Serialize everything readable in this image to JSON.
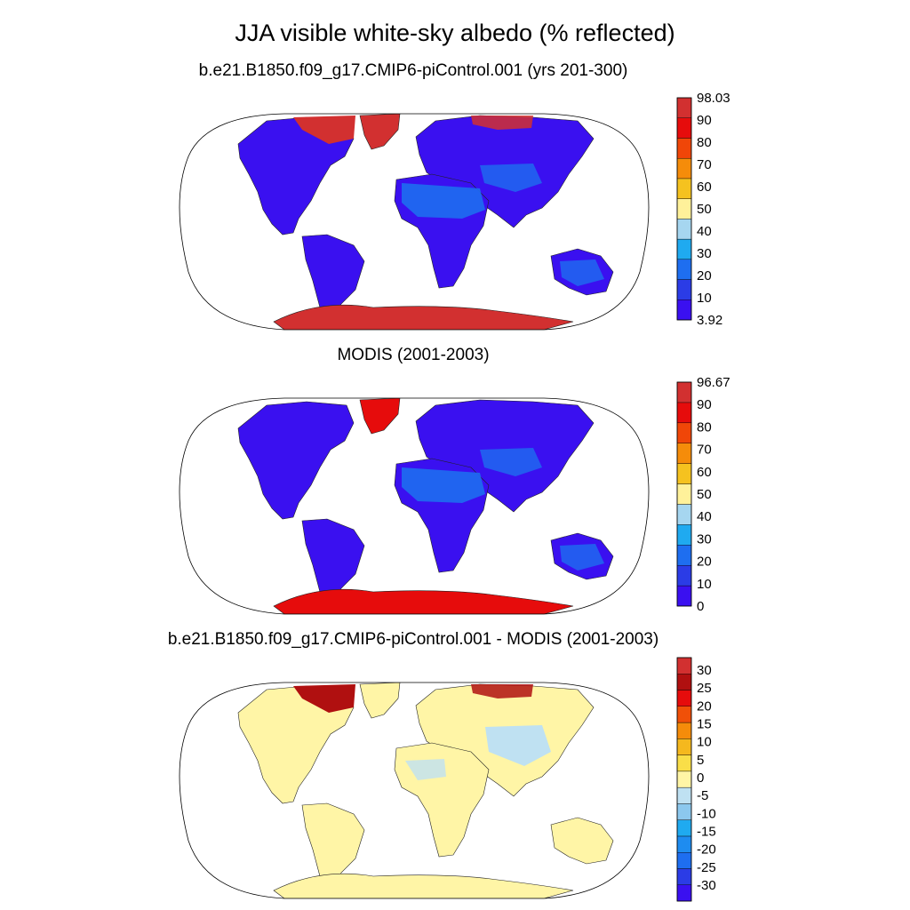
{
  "title": "JJA visible white-sky albedo (% reflected)",
  "colors": {
    "albedo_scale": [
      "#3a10f0",
      "#2b3ce6",
      "#1e6ef0",
      "#1faaf0",
      "#a6d6f0",
      "#fff19a",
      "#f5c21f",
      "#f58c0a",
      "#f04608",
      "#e60c0c",
      "#d23030"
    ],
    "diff_scale": [
      "#3a10f0",
      "#2b3ce6",
      "#1e6ef0",
      "#1e8cf0",
      "#1faaf0",
      "#8cc8ee",
      "#bfe1f2",
      "#fff5a6",
      "#f9de48",
      "#f5b81e",
      "#f58c0a",
      "#f05008",
      "#e60c0c",
      "#b01010",
      "#d23030"
    ],
    "land_low": "#3a10f0",
    "land_desert": "#1e6ef0",
    "ice": "#d23030",
    "modis_ice": "#e60c0c",
    "diff_land": "#fff5a6",
    "diff_neg": "#bfe1f2",
    "diff_high": "#b01010"
  },
  "panels": [
    {
      "name": "model",
      "title": "b.e21.B1850.f09_g17.CMIP6-piControl.001 (yrs 201-300)",
      "colorbar_labels": [
        "98.03",
        "90",
        "80",
        "70",
        "60",
        "50",
        "40",
        "30",
        "20",
        "10",
        "3.92"
      ]
    },
    {
      "name": "modis",
      "title": "MODIS (2001-2003)",
      "colorbar_labels": [
        "96.67",
        "90",
        "80",
        "70",
        "60",
        "50",
        "40",
        "30",
        "20",
        "10",
        "0"
      ]
    },
    {
      "name": "difference",
      "title": "b.e21.B1850.f09_g17.CMIP6-piControl.001 - MODIS (2001-2003)",
      "colorbar_labels": [
        "30",
        "25",
        "20",
        "15",
        "10",
        "5",
        "0",
        "-5",
        "-10",
        "-15",
        "-20",
        "-25",
        "-30"
      ]
    }
  ]
}
